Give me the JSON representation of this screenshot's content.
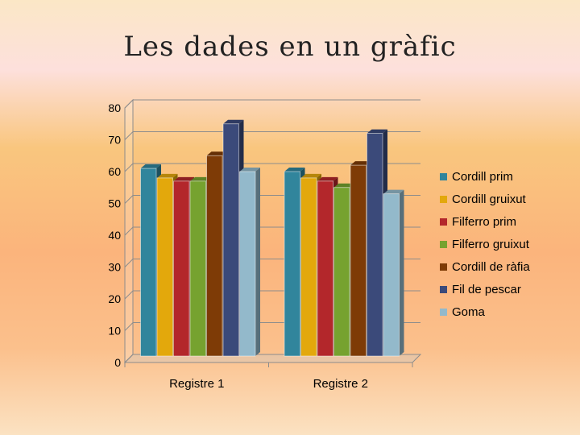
{
  "slide": {
    "title": "Les dades en un gràfic"
  },
  "chart_data": {
    "type": "bar",
    "title": "",
    "xlabel": "",
    "ylabel": "",
    "ylim": [
      0,
      80
    ],
    "yticks": [
      0,
      10,
      20,
      30,
      40,
      50,
      60,
      70,
      80
    ],
    "grid": true,
    "legend_position": "right",
    "categories": [
      "Registre 1",
      "Registre 2"
    ],
    "series": [
      {
        "name": "Cordill prim",
        "color": "#31859c",
        "values": [
          61,
          60
        ]
      },
      {
        "name": "Cordill gruixut",
        "color": "#e3a80c",
        "values": [
          58,
          58
        ]
      },
      {
        "name": "Filferro prim",
        "color": "#b3272b",
        "values": [
          57,
          57
        ]
      },
      {
        "name": "Filferro gruixut",
        "color": "#76a22f",
        "values": [
          57,
          55
        ]
      },
      {
        "name": "Cordill de ràfia",
        "color": "#7e3b06",
        "values": [
          65,
          62
        ]
      },
      {
        "name": "Fil de pescar",
        "color": "#3b4a7a",
        "values": [
          75,
          72
        ]
      },
      {
        "name": "Goma",
        "color": "#93b9cb",
        "values": [
          60,
          53
        ]
      }
    ]
  }
}
